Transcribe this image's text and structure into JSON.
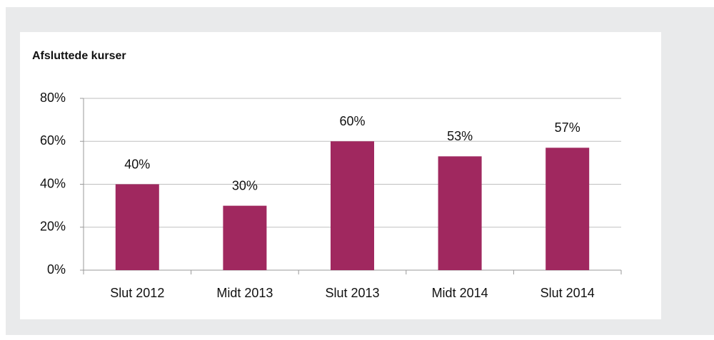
{
  "chart_data": {
    "type": "bar",
    "title": "Afsluttede kurser",
    "categories": [
      "Slut 2012",
      "Midt 2013",
      "Slut 2013",
      "Midt 2014",
      "Slut 2014"
    ],
    "values": [
      40,
      30,
      60,
      53,
      57
    ],
    "value_labels": [
      "40%",
      "30%",
      "60%",
      "53%",
      "57%"
    ],
    "color": "#a0285f",
    "ylim": [
      0,
      80
    ],
    "yticks": [
      {
        "value": 0,
        "label": "0%"
      },
      {
        "value": 20,
        "label": "20%"
      },
      {
        "value": 40,
        "label": "40%"
      },
      {
        "value": 60,
        "label": "60%"
      },
      {
        "value": 80,
        "label": "80%"
      }
    ],
    "grid": true
  }
}
